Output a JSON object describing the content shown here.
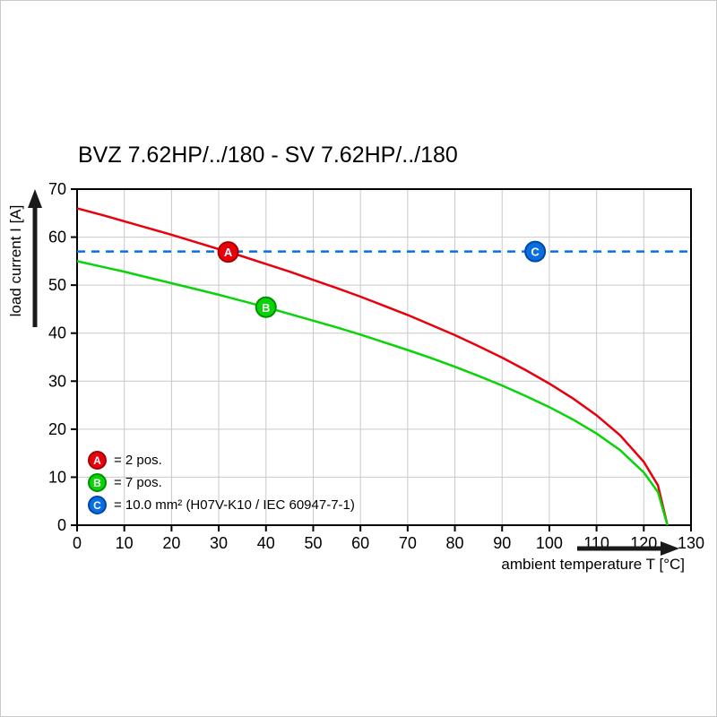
{
  "chart_data": {
    "type": "line",
    "title": "BVZ 7.62HP/../180 - SV 7.62HP/../180",
    "xlabel": "ambient temperature T [°C]",
    "ylabel": "load current I [A]",
    "xlim": [
      0,
      130
    ],
    "ylim": [
      0,
      70
    ],
    "xticks": [
      0,
      10,
      20,
      30,
      40,
      50,
      60,
      70,
      80,
      90,
      100,
      110,
      120,
      130
    ],
    "yticks": [
      0,
      10,
      20,
      30,
      40,
      50,
      60,
      70
    ],
    "grid": true,
    "grid_color": "#c9c9c9",
    "legend_position": "bottom-left-inside",
    "series": [
      {
        "name": "A",
        "label": "= 2 pos.",
        "color": "#e8000d",
        "edge": "#a50000",
        "style": "solid",
        "points": [
          [
            0,
            66
          ],
          [
            5,
            64.7
          ],
          [
            10,
            63.3
          ],
          [
            15,
            61.9
          ],
          [
            20,
            60.5
          ],
          [
            25,
            59.0
          ],
          [
            30,
            57.5
          ],
          [
            35,
            56.0
          ],
          [
            40,
            54.4
          ],
          [
            45,
            52.8
          ],
          [
            50,
            51.1
          ],
          [
            55,
            49.4
          ],
          [
            60,
            47.6
          ],
          [
            65,
            45.7
          ],
          [
            70,
            43.8
          ],
          [
            75,
            41.7
          ],
          [
            80,
            39.6
          ],
          [
            85,
            37.3
          ],
          [
            90,
            34.9
          ],
          [
            95,
            32.3
          ],
          [
            100,
            29.5
          ],
          [
            105,
            26.4
          ],
          [
            110,
            22.9
          ],
          [
            115,
            18.7
          ],
          [
            120,
            13.2
          ],
          [
            123,
            8.3
          ],
          [
            125,
            0
          ]
        ],
        "marker_at": [
          32,
          56.9
        ]
      },
      {
        "name": "B",
        "label": "= 7 pos.",
        "color": "#09d309",
        "edge": "#009100",
        "style": "solid",
        "points": [
          [
            0,
            55
          ],
          [
            5,
            53.9
          ],
          [
            10,
            52.8
          ],
          [
            15,
            51.6
          ],
          [
            20,
            50.4
          ],
          [
            25,
            49.2
          ],
          [
            30,
            48.0
          ],
          [
            35,
            46.7
          ],
          [
            40,
            45.4
          ],
          [
            45,
            44.0
          ],
          [
            50,
            42.6
          ],
          [
            55,
            41.2
          ],
          [
            60,
            39.7
          ],
          [
            65,
            38.1
          ],
          [
            70,
            36.5
          ],
          [
            75,
            34.8
          ],
          [
            80,
            33.0
          ],
          [
            85,
            31.1
          ],
          [
            90,
            29.1
          ],
          [
            95,
            26.9
          ],
          [
            100,
            24.6
          ],
          [
            105,
            22.0
          ],
          [
            110,
            19.1
          ],
          [
            115,
            15.6
          ],
          [
            120,
            11.0
          ],
          [
            123,
            6.9
          ],
          [
            125,
            0
          ]
        ],
        "marker_at": [
          40,
          45.4
        ]
      },
      {
        "name": "C",
        "label": "= 10.0 mm² (H07V-K10 / IEC 60947-7-1)",
        "color": "#0a6ee0",
        "edge": "#0047a8",
        "style": "dashed",
        "points": [
          [
            0,
            57
          ],
          [
            130,
            57
          ]
        ],
        "marker_at": [
          97,
          57
        ]
      }
    ]
  }
}
